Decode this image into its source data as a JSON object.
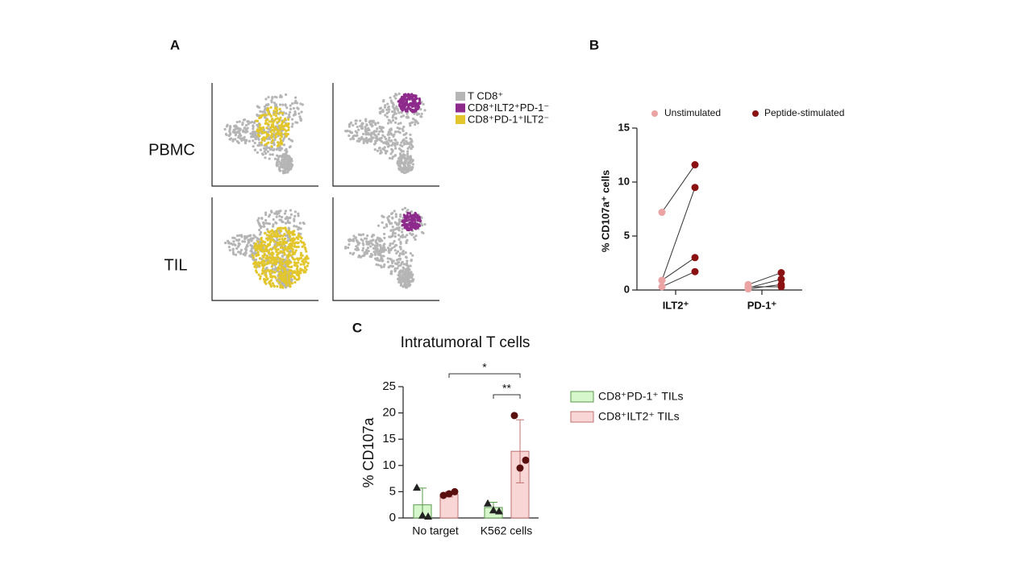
{
  "chart_data": [
    {
      "type": "umap",
      "panel": "A",
      "rows": [
        "PBMC",
        "TIL"
      ],
      "series": [
        {
          "name": "T CD8⁺",
          "color": "#b5b5b5"
        },
        {
          "name": "CD8⁺ILT2⁺PD-1⁻",
          "color": "#8e2a8c"
        },
        {
          "name": "CD8⁺PD-1⁺ILT2⁻",
          "color": "#e3c62c"
        }
      ]
    },
    {
      "type": "paired-dot",
      "panel": "B",
      "ylabel": "% CD107a⁺ cells",
      "categories": [
        "ILT2⁺",
        "PD-1⁺"
      ],
      "ylim": [
        0,
        15
      ],
      "yticks": [
        0,
        5,
        10,
        15
      ],
      "series": [
        {
          "name": "Unstimulated",
          "color": "#eba3a3",
          "values": [
            [
              7.2,
              0.9,
              0.9,
              0.3
            ],
            [
              0.5,
              0.2,
              0.1,
              0.3
            ]
          ]
        },
        {
          "name": "Peptide-stimulated",
          "color": "#8a1212",
          "values": [
            [
              11.6,
              9.5,
              3.0,
              1.7
            ],
            [
              1.6,
              1.0,
              0.5,
              0.3
            ]
          ]
        }
      ]
    },
    {
      "type": "bar",
      "panel": "C",
      "title": "Intratumoral T cells",
      "ylabel": "% CD107a",
      "categories": [
        "No target",
        "K562 cells"
      ],
      "ylim": [
        0,
        25
      ],
      "yticks": [
        0,
        5,
        10,
        15,
        20,
        25
      ],
      "significance": [
        "*",
        "**"
      ],
      "series": [
        {
          "name": "CD8⁺PD-1⁺ TILs",
          "color": "#d6f7cc",
          "edge": "#5a9a4a",
          "marker": "triangle",
          "values": [
            2.5,
            2.0
          ],
          "errors": [
            3.2,
            1.0
          ],
          "points": [
            [
              5.8,
              0.3,
              0.5
            ],
            [
              2.8,
              1.3,
              1.5
            ]
          ]
        },
        {
          "name": "CD8⁺ILT2⁺ TILs",
          "color": "#f9d6d6",
          "edge": "#c07070",
          "marker": "circle",
          "values": [
            4.5,
            12.7
          ],
          "errors": [
            0.5,
            6.0
          ],
          "points": [
            [
              4.3,
              5.0,
              4.6
            ],
            [
              19.5,
              11.0,
              9.5
            ]
          ]
        }
      ]
    }
  ]
}
